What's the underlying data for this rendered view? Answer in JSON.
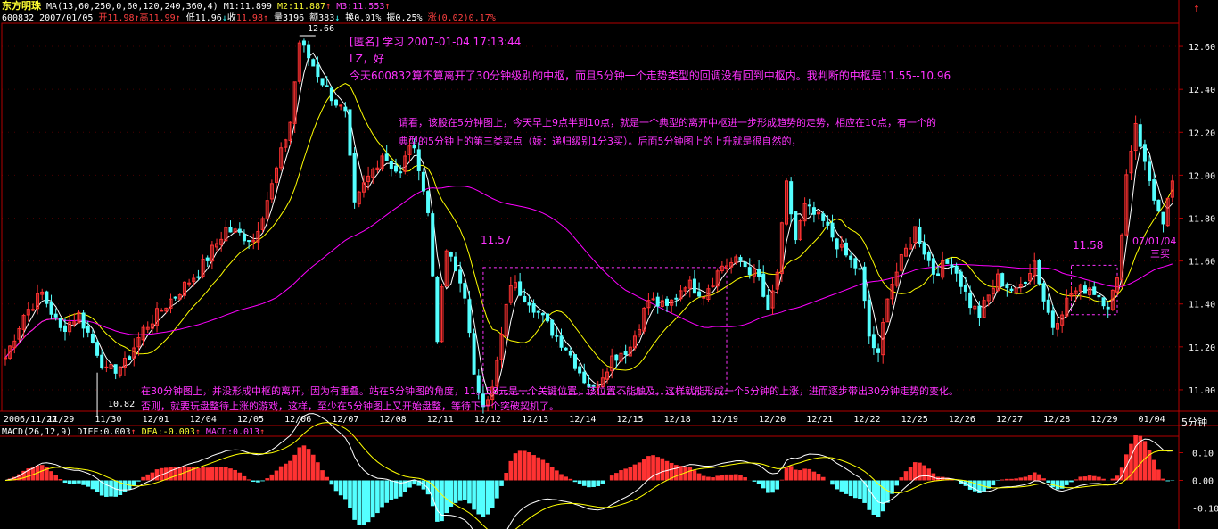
{
  "header": {
    "stock_name": "东方明珠",
    "ma_label": "MA(13,60,250,0,60,120,240,360,4)",
    "m1": "M1:11.899",
    "m2": "M2:11.887",
    "m3": "M3:11.553",
    "code": "600832",
    "date": "2007/01/05",
    "open_label": "开",
    "open": "11.98",
    "high_label": "高",
    "high": "11.99",
    "low_label": "低",
    "low": "11.96",
    "close_label": "收",
    "close": "11.98",
    "volume": "量3196",
    "amount": "额383",
    "turnover": "换0.01%",
    "amplitude": "振0.25%",
    "change_label": "涨",
    "change": "(0.02)0.17%"
  },
  "annotations": {
    "note1_line1": "[匿名] 学习 2007-01-04 17:13:44",
    "note1_line2": "LZ，好",
    "note1_line3": "今天600832算不算离开了30分钟级别的中枢，而且5分钟一个走势类型的回调没有回到中枢内。我判断的中枢是11.55--10.96",
    "note2_line1": "请看，该股在5分钟图上，今天早上9点半到10点，就是一个典型的离开中枢进一步形成趋势的走势，相应在10点，有一个的",
    "note2_line2": "典型的5分钟上的第三类买点（娇：递归级别1分3买）。后面5分钟图上的上升就是很自然的，",
    "note3_line1": "在30分钟图上，并没形成中枢的离开，因为有重叠。站在5分钟图的角度，11。58元是一个关键位置，该位置不能触及，这样就能形成一个5分钟的上涨，进而逐步带出30分钟走势的变化。",
    "note3_line2": "否则，就要玩盘整待上涨的游戏，这样，至少在5分钟图上又开始盘整，等待下一个突破契机了。",
    "box_label_1": "11.57",
    "box_label_2": "11.58",
    "date_label": "07/01/04",
    "buy_label": "三买",
    "high_mark": "12.66",
    "low_mark": "10.82"
  },
  "period_label": "5分钟",
  "macd": {
    "title": "MACD(26,12,9)",
    "diff": "DIFF:0.003",
    "dea": "DEA:-0.003",
    "macd": "MACD:0.013"
  },
  "colors": {
    "background": "#000000",
    "up_candle": "#ff3232",
    "down_candle": "#54ffff",
    "ma_short": "#ffffff",
    "ma_mid": "#ffff00",
    "ma_long": "#ff00ff",
    "annotation": "#ff33ff",
    "grid": "#b40000"
  },
  "chart_data": [
    {
      "type": "candlestick",
      "ylim": [
        10.9,
        12.7
      ],
      "yticks": [
        11.0,
        11.2,
        11.4,
        11.6,
        11.8,
        12.0,
        12.2,
        12.4,
        12.6
      ],
      "ytick_labels": [
        "11.00",
        "11.20",
        "11.40",
        "11.60",
        "11.80",
        "12.00",
        "12.20",
        "12.40",
        "12.60"
      ],
      "x_labels": [
        "2006/11/27",
        "11/29",
        "11/30",
        "12/01",
        "12/04",
        "12/05",
        "12/06",
        "12/07",
        "12/08",
        "12/11",
        "12/12",
        "12/13",
        "12/14",
        "12/15",
        "12/18",
        "12/19",
        "12/20",
        "12/21",
        "12/22",
        "12/25",
        "12/26",
        "12/27",
        "12/28",
        "12/29",
        "01/04"
      ],
      "keyframes": [
        [
          0,
          11.15
        ],
        [
          4,
          11.35
        ],
        [
          8,
          11.45
        ],
        [
          12,
          11.28
        ],
        [
          16,
          11.35
        ],
        [
          20,
          11.18
        ],
        [
          22,
          11.08
        ],
        [
          26,
          11.12
        ],
        [
          30,
          11.28
        ],
        [
          36,
          11.42
        ],
        [
          42,
          11.55
        ],
        [
          48,
          11.75
        ],
        [
          54,
          11.7
        ],
        [
          58,
          11.95
        ],
        [
          62,
          12.25
        ],
        [
          64,
          12.62
        ],
        [
          66,
          12.55
        ],
        [
          70,
          12.4
        ],
        [
          74,
          12.28
        ],
        [
          76,
          11.85
        ],
        [
          78,
          11.95
        ],
        [
          82,
          12.1
        ],
        [
          86,
          12.0
        ],
        [
          88,
          12.15
        ],
        [
          90,
          12.05
        ],
        [
          92,
          11.82
        ],
        [
          94,
          11.25
        ],
        [
          96,
          11.65
        ],
        [
          100,
          11.45
        ],
        [
          102,
          11.05
        ],
        [
          104,
          10.95
        ],
        [
          106,
          11.0
        ],
        [
          110,
          11.5
        ],
        [
          114,
          11.42
        ],
        [
          118,
          11.3
        ],
        [
          122,
          11.2
        ],
        [
          126,
          11.05
        ],
        [
          128,
          11.0
        ],
        [
          132,
          11.15
        ],
        [
          136,
          11.2
        ],
        [
          140,
          11.42
        ],
        [
          144,
          11.38
        ],
        [
          148,
          11.5
        ],
        [
          152,
          11.45
        ],
        [
          156,
          11.58
        ],
        [
          160,
          11.6
        ],
        [
          164,
          11.52
        ],
        [
          166,
          11.35
        ],
        [
          168,
          11.55
        ],
        [
          170,
          11.95
        ],
        [
          172,
          11.7
        ],
        [
          174,
          11.85
        ],
        [
          178,
          11.78
        ],
        [
          182,
          11.65
        ],
        [
          186,
          11.55
        ],
        [
          188,
          11.25
        ],
        [
          190,
          11.15
        ],
        [
          192,
          11.45
        ],
        [
          196,
          11.65
        ],
        [
          198,
          11.75
        ],
        [
          202,
          11.55
        ],
        [
          206,
          11.6
        ],
        [
          210,
          11.4
        ],
        [
          212,
          11.35
        ],
        [
          216,
          11.52
        ],
        [
          220,
          11.45
        ],
        [
          224,
          11.6
        ],
        [
          226,
          11.42
        ],
        [
          228,
          11.3
        ],
        [
          232,
          11.45
        ],
        [
          236,
          11.48
        ],
        [
          240,
          11.4
        ],
        [
          242,
          11.5
        ],
        [
          244,
          12.0
        ],
        [
          246,
          12.25
        ],
        [
          248,
          12.05
        ],
        [
          250,
          11.9
        ],
        [
          252,
          11.75
        ],
        [
          254,
          11.98
        ]
      ],
      "ma_white_label": "M1",
      "ma_yellow_label": "M2",
      "ma_magenta_label": "M3"
    },
    {
      "type": "bar",
      "name_ref": "macd",
      "ylim": [
        -0.15,
        0.15
      ],
      "yticks": [
        0.1,
        0.0,
        -0.1
      ],
      "ytick_labels": [
        "0.10",
        "0.00",
        "-0.10"
      ]
    }
  ]
}
